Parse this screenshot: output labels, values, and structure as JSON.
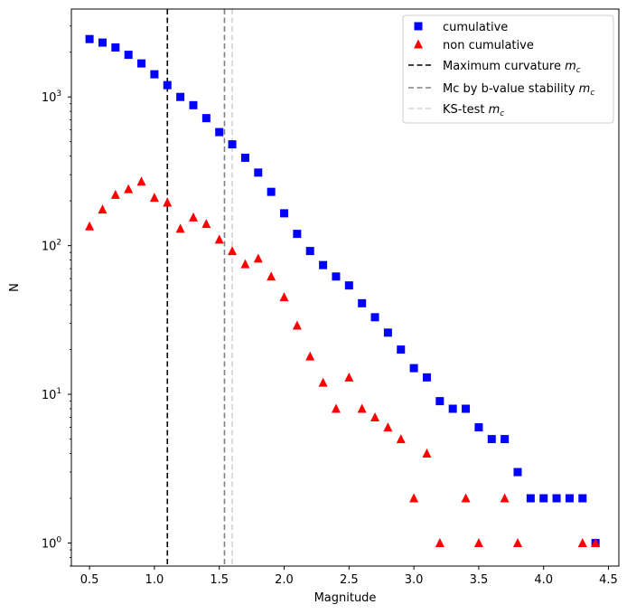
{
  "chart_data": {
    "type": "scatter",
    "xlabel": "Magnitude",
    "ylabel": "N",
    "yscale": "log",
    "xlim": [
      0.36,
      4.58
    ],
    "ylim": [
      0.7,
      3900
    ],
    "xticks": [
      0.5,
      1.0,
      1.5,
      2.0,
      2.5,
      3.0,
      3.5,
      4.0,
      4.5
    ],
    "xtick_labels": [
      "0.5",
      "1.0",
      "1.5",
      "2.0",
      "2.5",
      "3.0",
      "3.5",
      "4.0",
      "4.5"
    ],
    "yticks": [
      1,
      10,
      100,
      1000
    ],
    "ytick_labels": [
      {
        "base": "10",
        "exp": "0"
      },
      {
        "base": "10",
        "exp": "1"
      },
      {
        "base": "10",
        "exp": "2"
      },
      {
        "base": "10",
        "exp": "3"
      }
    ],
    "legend_position": "top-right",
    "series": [
      {
        "name": "cumulative",
        "marker": "square",
        "color": "#0000ff",
        "x": [
          0.5,
          0.6,
          0.7,
          0.8,
          0.9,
          1.0,
          1.1,
          1.2,
          1.3,
          1.4,
          1.5,
          1.6,
          1.7,
          1.8,
          1.9,
          2.0,
          2.1,
          2.2,
          2.3,
          2.4,
          2.5,
          2.6,
          2.7,
          2.8,
          2.9,
          3.0,
          3.1,
          3.2,
          3.3,
          3.4,
          3.5,
          3.6,
          3.7,
          3.8,
          3.9,
          4.0,
          4.1,
          4.2,
          4.3,
          4.4
        ],
        "y": [
          2450,
          2320,
          2150,
          1920,
          1680,
          1420,
          1200,
          1000,
          880,
          720,
          580,
          480,
          390,
          310,
          230,
          165,
          120,
          92,
          74,
          62,
          54,
          41,
          33,
          26,
          20,
          15,
          13,
          9,
          8,
          8,
          6,
          5,
          5,
          3,
          2,
          2,
          2,
          2,
          2,
          1
        ]
      },
      {
        "name": "non cumulative",
        "marker": "triangle",
        "color": "#ff0000",
        "x": [
          0.5,
          0.6,
          0.7,
          0.8,
          0.9,
          1.0,
          1.1,
          1.2,
          1.3,
          1.4,
          1.5,
          1.6,
          1.7,
          1.8,
          1.9,
          2.0,
          2.1,
          2.2,
          2.3,
          2.4,
          2.5,
          2.6,
          2.7,
          2.8,
          2.9,
          3.0,
          3.1,
          3.2,
          3.4,
          3.5,
          3.7,
          3.8,
          4.3,
          4.4
        ],
        "y": [
          135,
          175,
          220,
          240,
          270,
          210,
          195,
          130,
          155,
          140,
          110,
          92,
          75,
          82,
          62,
          45,
          29,
          18,
          12,
          8,
          13,
          8,
          7,
          6,
          5,
          2,
          4,
          1,
          2,
          1,
          2,
          1,
          1,
          1
        ]
      }
    ],
    "vlines": [
      {
        "label_text": "Maximum curvature ",
        "label_math": "m",
        "label_sub": "c",
        "x": 1.1,
        "color": "#000000",
        "dash": "6,3.5"
      },
      {
        "label_text": "Mc by b-value stability ",
        "label_math": "m",
        "label_sub": "c",
        "x": 1.54,
        "color": "#808080",
        "dash": "6,3.5"
      },
      {
        "label_text": "KS-test ",
        "label_math": "m",
        "label_sub": "c",
        "x": 1.6,
        "color": "#d3d3d3",
        "dash": "6,3.5"
      }
    ]
  }
}
